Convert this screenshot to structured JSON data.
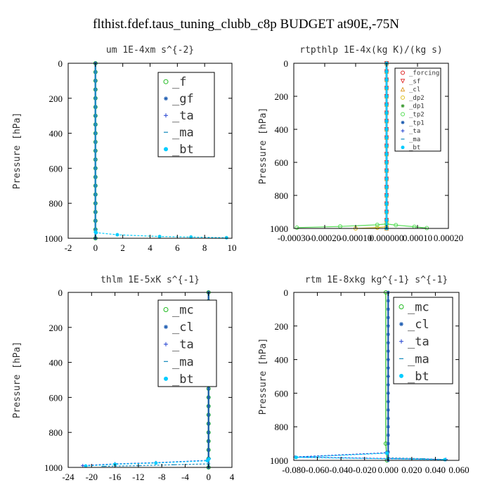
{
  "figure_title": "flthist.fdef.taus_tuning_clubb_c8p  BUDGET at90E,-75N",
  "chart_data": [
    {
      "type": "line",
      "title": "um  1E-4xm s^{-2}",
      "ylabel": "Pressure [hPa]",
      "xlim": [
        -2,
        10
      ],
      "ylim": [
        1000,
        0
      ],
      "xticks": [
        "-2",
        "0",
        "2",
        "4",
        "6",
        "8",
        "10"
      ],
      "xtick_values": [
        -2,
        0,
        2,
        4,
        6,
        8,
        10
      ],
      "yticks": [
        "0",
        "200",
        "400",
        "600",
        "800",
        "1000"
      ],
      "ytick_values": [
        0,
        200,
        400,
        600,
        800,
        1000
      ],
      "legend_size": "large",
      "series": [
        {
          "name": "_f",
          "color": "#22bb22",
          "marker": "o",
          "x": [
            0,
            0
          ],
          "y": [
            0,
            1000
          ]
        },
        {
          "name": "_gf",
          "color": "#1a5ab0",
          "marker": "*",
          "x": [
            0,
            0
          ],
          "y": [
            0,
            1000
          ]
        },
        {
          "name": "_ta",
          "color": "#1f3fd0",
          "marker": "+",
          "x": [
            0,
            0
          ],
          "y": [
            0,
            1000
          ]
        },
        {
          "name": "_ma",
          "color": "#2090c0",
          "marker": "-",
          "x": [
            0,
            0
          ],
          "y": [
            0,
            1000
          ]
        },
        {
          "name": "_bt",
          "color": "#00ccff",
          "marker": "dot",
          "x": [
            0,
            0.05,
            1.6,
            4.7,
            7.0,
            9.6
          ],
          "y": [
            965,
            968,
            980,
            990,
            993,
            997
          ]
        }
      ]
    },
    {
      "type": "line",
      "title": "rtpthlp  1E-4x(kg K)/(kg s)",
      "ylabel": "Pressure [hPa]",
      "xlim": [
        -0.0003,
        0.0002
      ],
      "ylim": [
        1000,
        0
      ],
      "xticks": [
        "-0.00030",
        "-0.00020",
        "-0.00010",
        "0.000000",
        "0.00010",
        "0.00020"
      ],
      "xtick_values": [
        -0.0003,
        -0.0002,
        -0.0001,
        0,
        0.0001,
        0.0002
      ],
      "yticks": [
        "0",
        "200",
        "400",
        "600",
        "800",
        "1000"
      ],
      "ytick_values": [
        0,
        200,
        400,
        600,
        800,
        1000
      ],
      "legend_size": "small",
      "series": [
        {
          "name": "_forcing",
          "color": "#dd2222",
          "marker": "o",
          "x": [
            0,
            0
          ],
          "y": [
            0,
            1000
          ]
        },
        {
          "name": "_sf",
          "color": "#e03030",
          "marker": "v",
          "x": [
            0,
            0
          ],
          "y": [
            0,
            1000
          ]
        },
        {
          "name": "_cl",
          "color": "#e0a030",
          "marker": "^",
          "x": [
            0,
            0
          ],
          "y": [
            0,
            1000
          ]
        },
        {
          "name": "_dp2",
          "color": "#e0c020",
          "marker": "o",
          "x": [
            -0.0001,
            -3e-05,
            0
          ],
          "y": [
            1000,
            995,
            990
          ]
        },
        {
          "name": "_dp1",
          "color": "#3a9a30",
          "marker": "*",
          "x": [
            0,
            0
          ],
          "y": [
            0,
            1000
          ]
        },
        {
          "name": "_tp2",
          "color": "#55dd55",
          "marker": "o",
          "x": [
            -0.00029,
            -0.00015,
            -3e-05,
            0,
            3e-05,
            9e-05,
            0.00013
          ],
          "y": [
            995,
            988,
            978,
            973,
            980,
            990,
            998
          ]
        },
        {
          "name": "_tp1",
          "color": "#1a5ab0",
          "marker": "*",
          "x": [
            0,
            0
          ],
          "y": [
            0,
            1000
          ]
        },
        {
          "name": "_ta",
          "color": "#1f3fd0",
          "marker": "+",
          "x": [
            0,
            0
          ],
          "y": [
            0,
            1000
          ]
        },
        {
          "name": "_ma",
          "color": "#2090c0",
          "marker": "-",
          "x": [
            0,
            0
          ],
          "y": [
            0,
            1000
          ]
        },
        {
          "name": "_bt",
          "color": "#00ccff",
          "marker": "dot",
          "x": [
            0,
            0
          ],
          "y": [
            0,
            1000
          ]
        }
      ]
    },
    {
      "type": "line",
      "title": "thlm  1E-5xK s^{-1}",
      "ylabel": "Pressure [hPa]",
      "xlim": [
        -24,
        4
      ],
      "ylim": [
        1000,
        0
      ],
      "xticks": [
        "-24",
        "-20",
        "-16",
        "-12",
        "-8",
        "-4",
        "0",
        "4"
      ],
      "xtick_values": [
        -24,
        -20,
        -16,
        -12,
        -8,
        -4,
        0,
        4
      ],
      "yticks": [
        "0",
        "200",
        "400",
        "600",
        "800",
        "1000"
      ],
      "ytick_values": [
        0,
        200,
        400,
        600,
        800,
        1000
      ],
      "legend_size": "large",
      "series": [
        {
          "name": "_mc",
          "color": "#22bb22",
          "marker": "o",
          "x": [
            0,
            0
          ],
          "y": [
            0,
            1000
          ]
        },
        {
          "name": "_cl",
          "color": "#1a5ab0",
          "marker": "*",
          "x": [
            0,
            0
          ],
          "y": [
            0,
            1000
          ]
        },
        {
          "name": "_ta",
          "color": "#1f3fd0",
          "marker": "+",
          "x": [
            0.1,
            -0.3,
            -9,
            -16,
            -21.5
          ],
          "y": [
            950,
            960,
            973,
            980,
            990
          ]
        },
        {
          "name": "_ma",
          "color": "#2090c0",
          "marker": "-",
          "x": [
            0,
            -6,
            -12,
            -18
          ],
          "y": [
            980,
            985,
            990,
            994
          ]
        },
        {
          "name": "_bt",
          "color": "#00ccff",
          "marker": "dot",
          "x": [
            0.05,
            -0.2,
            -9,
            -16,
            -21
          ],
          "y": [
            952,
            962,
            975,
            982,
            992
          ]
        }
      ]
    },
    {
      "type": "line",
      "title": "rtm  1E-8xkg kg^{-1} s^{-1}",
      "ylabel": "Pressure [hPa]",
      "xlim": [
        -0.08,
        0.06
      ],
      "ylim": [
        1000,
        0
      ],
      "xticks": [
        "-0.080",
        "-0.060",
        "-0.040",
        "-0.020",
        "0.000",
        "0.020",
        "0.040",
        "0.060"
      ],
      "xtick_values": [
        -0.08,
        -0.06,
        -0.04,
        -0.02,
        0,
        0.02,
        0.04,
        0.06
      ],
      "yticks": [
        "0",
        "200",
        "400",
        "600",
        "800",
        "1000"
      ],
      "ytick_values": [
        0,
        200,
        400,
        600,
        800,
        1000
      ],
      "legend_size": "large",
      "series": [
        {
          "name": "_mc",
          "color": "#22bb22",
          "marker": "o",
          "x": [
            -0.002,
            -0.002,
            -0.001
          ],
          "y": [
            0,
            900,
            1000
          ]
        },
        {
          "name": "_cl",
          "color": "#1a5ab0",
          "marker": "*",
          "x": [
            0,
            0
          ],
          "y": [
            0,
            1000
          ]
        },
        {
          "name": "_ta",
          "color": "#1f3fd0",
          "marker": "+",
          "x": [
            -0.002,
            -0.079,
            0.049
          ],
          "y": [
            955,
            980,
            995
          ]
        },
        {
          "name": "_ma",
          "color": "#2090c0",
          "marker": "-",
          "x": [
            0,
            0.03,
            0.048
          ],
          "y": [
            985,
            990,
            995
          ]
        },
        {
          "name": "_bt",
          "color": "#00ccff",
          "marker": "dot",
          "x": [
            -0.001,
            -0.078,
            0.048
          ],
          "y": [
            957,
            982,
            996
          ]
        }
      ]
    }
  ]
}
